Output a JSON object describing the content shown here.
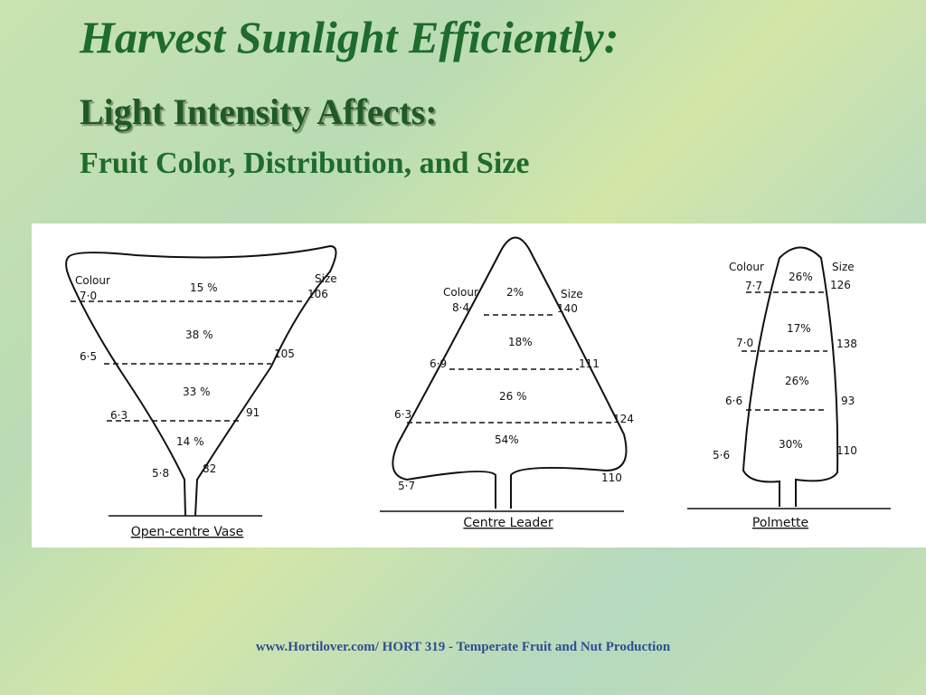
{
  "header": {
    "title": "Harvest Sunlight Efficiently:",
    "subtitle": "Light Intensity Affects:",
    "detail": "Fruit Color, Distribution, and Size"
  },
  "trees": [
    {
      "name": "Open-centre Vase",
      "colour_label": "Colour",
      "size_label": "Size",
      "zones": [
        "15 %",
        "38 %",
        "33 %",
        "14 %"
      ],
      "levels": [
        {
          "colour": "7·0",
          "size": "106"
        },
        {
          "colour": "6·5",
          "size": "105"
        },
        {
          "colour": "6·3",
          "size": "91"
        },
        {
          "colour": "5·8",
          "size": "82"
        }
      ]
    },
    {
      "name": "Centre Leader",
      "colour_label": "Colour",
      "size_label": "Size",
      "zones": [
        "2%",
        "18%",
        "26 %",
        "54%"
      ],
      "levels": [
        {
          "colour": "8·4",
          "size": "140"
        },
        {
          "colour": "6·9",
          "size": "111"
        },
        {
          "colour": "6·3",
          "size": "124"
        },
        {
          "colour": "5·7",
          "size": "110"
        }
      ]
    },
    {
      "name": "Polmette",
      "colour_label": "Colour",
      "size_label": "Size",
      "zones": [
        "26%",
        "17%",
        "26%",
        "30%"
      ],
      "levels": [
        {
          "colour": "7·7",
          "size": "126"
        },
        {
          "colour": "7·0",
          "size": "138"
        },
        {
          "colour": "6·6",
          "size": "93"
        },
        {
          "colour": "5·6",
          "size": "110"
        }
      ]
    }
  ],
  "footer": "www.Hortilover.com/  HORT 319 - Temperate Fruit and Nut Production"
}
